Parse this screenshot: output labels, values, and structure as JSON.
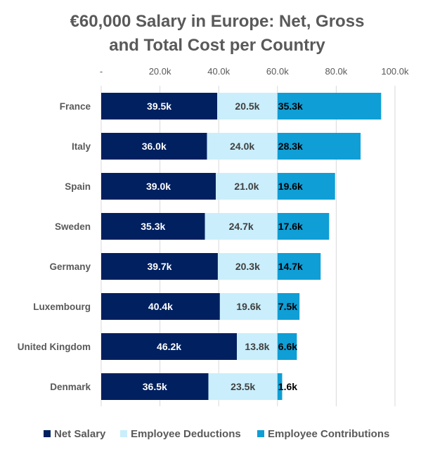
{
  "chart_data": {
    "type": "bar",
    "orientation": "horizontal",
    "stacked": true,
    "title": "€60,000 Salary in Europe: Net, Gross and Total Cost per Country",
    "title_lines": [
      "€60,000 Salary in Europe: Net, Gross",
      "and Total Cost per Country"
    ],
    "categories": [
      "France",
      "Italy",
      "Spain",
      "Sweden",
      "Germany",
      "Luxembourg",
      "United Kingdom",
      "Denmark"
    ],
    "series": [
      {
        "name": "Net Salary",
        "color": "#002060",
        "label_color": "#ffffff",
        "values": [
          39.5,
          36.0,
          39.0,
          35.3,
          39.7,
          40.4,
          46.2,
          36.5
        ]
      },
      {
        "name": "Employee Deductions",
        "color": "#CAEEFB",
        "label_color": "#404040",
        "values": [
          20.5,
          24.0,
          21.0,
          24.7,
          20.3,
          19.6,
          13.8,
          23.5
        ]
      },
      {
        "name": "Employee Contributions",
        "color": "#0F9ED5",
        "label_color": "#000000",
        "values": [
          35.3,
          28.3,
          19.6,
          17.6,
          14.7,
          7.5,
          6.6,
          1.6
        ]
      }
    ],
    "data_labels": [
      [
        "39.5k",
        "36.0k",
        "39.0k",
        "35.3k",
        "39.7k",
        "40.4k",
        "46.2k",
        "36.5k"
      ],
      [
        "20.5k",
        "24.0k",
        "21.0k",
        "24.7k",
        "20.3k",
        "19.6k",
        "13.8k",
        "23.5k"
      ],
      [
        "35.3k",
        "28.3k",
        "19.6k",
        "17.6k",
        "14.7k",
        "7.5k",
        "6.6k",
        "1.6k"
      ]
    ],
    "xlim": [
      0,
      100
    ],
    "x_ticks": [
      0,
      20,
      40,
      60,
      80,
      100
    ],
    "x_tick_labels": [
      "-",
      "20.0k",
      "40.0k",
      "60.0k",
      "80.0k",
      "100.0k"
    ],
    "x_axis_position": "top",
    "grid": true,
    "legend_position": "bottom",
    "xlabel": "",
    "ylabel": ""
  }
}
